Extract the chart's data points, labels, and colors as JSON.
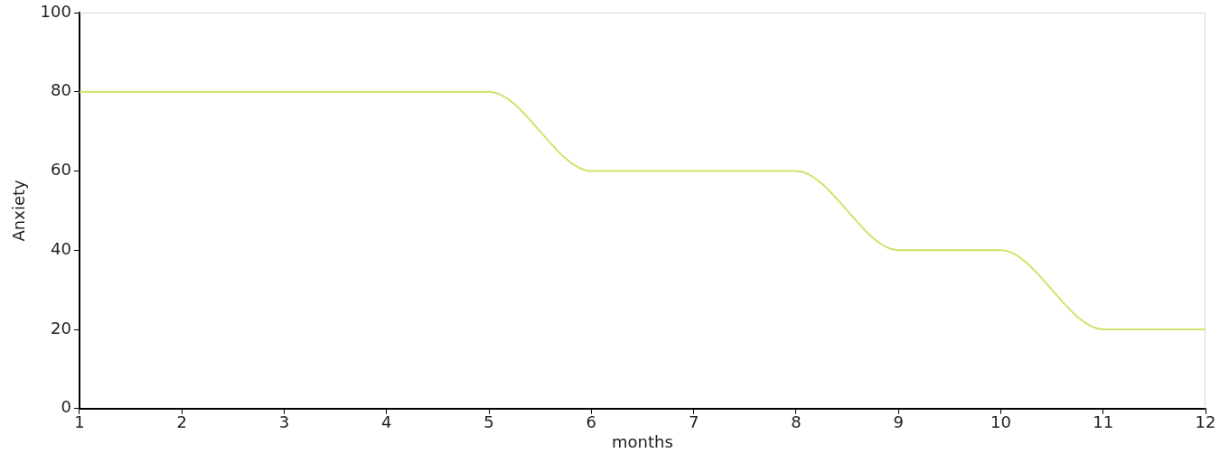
{
  "chart_data": {
    "type": "line",
    "xlabel": "months",
    "ylabel": "Anxiety",
    "x": [
      1,
      2,
      3,
      4,
      5,
      6,
      7,
      8,
      9,
      10,
      11,
      12
    ],
    "series": [
      {
        "color": "#d4e06b",
        "values": [
          80,
          80,
          80,
          80,
          80,
          60,
          60,
          60,
          40,
          40,
          20,
          20
        ]
      }
    ],
    "xlim": [
      1,
      12
    ],
    "xticks": [
      1,
      2,
      3,
      4,
      5,
      6,
      7,
      8,
      9,
      10,
      11,
      12
    ],
    "ylim": [
      0,
      100
    ],
    "yticks": [
      0,
      20,
      40,
      60,
      80,
      100
    ],
    "grid": false,
    "legend": false,
    "marker": "none",
    "line_style": "solid"
  }
}
